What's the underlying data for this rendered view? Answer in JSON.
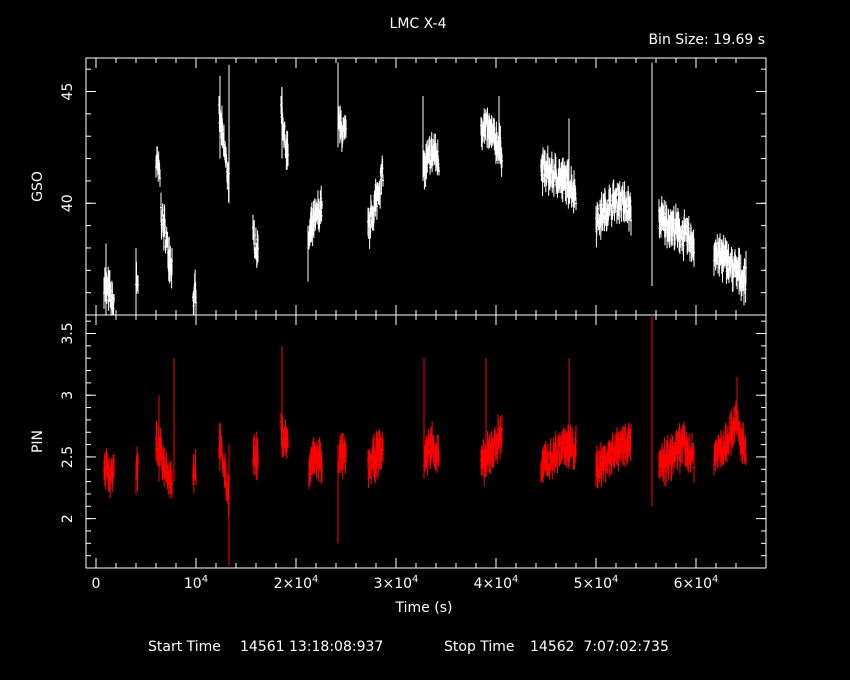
{
  "chart_data": {
    "type": "scatter",
    "title": "LMC X-4",
    "subtitle": "Bin Size: 19.69 s",
    "xlabel": "Time (s)",
    "xlim": [
      -1000,
      67000
    ],
    "x_ticks": [
      {
        "value": 0,
        "label": "0"
      },
      {
        "value": 10000,
        "base": "10",
        "exp": "4"
      },
      {
        "value": 20000,
        "base": "2×10",
        "exp": "4"
      },
      {
        "value": 30000,
        "base": "3×10",
        "exp": "4"
      },
      {
        "value": 40000,
        "base": "4×10",
        "exp": "4"
      },
      {
        "value": 50000,
        "base": "5×10",
        "exp": "4"
      },
      {
        "value": 60000,
        "base": "6×10",
        "exp": "4"
      }
    ],
    "footer": {
      "start_label": "Start Time",
      "start_value": "14561 13:18:08:937",
      "stop_label": "Stop Time",
      "stop_value": "14562  7:07:02:735"
    },
    "panels": [
      {
        "name": "gso",
        "ylabel": "GSO",
        "ylim": [
          35.0,
          46.5
        ],
        "yticks": [
          40,
          45
        ],
        "color": "#ffffff",
        "segments": [
          {
            "t0": 800,
            "t1": 1800,
            "level": [
              36.5,
              36.0,
              35.3
            ]
          },
          {
            "t0": 4000,
            "t1": 4200,
            "level": [
              36.5
            ]
          },
          {
            "t0": 6000,
            "t1": 6400,
            "level": [
              41.8,
              41.3
            ]
          },
          {
            "t0": 6500,
            "t1": 7600,
            "level": [
              39.5,
              38.8,
              37.8,
              37.2
            ]
          },
          {
            "t0": 9700,
            "t1": 10000,
            "level": [
              35.8
            ]
          },
          {
            "t0": 12300,
            "t1": 13300,
            "level": [
              44.0,
              43.0,
              42.0,
              41.0
            ]
          },
          {
            "t0": 15700,
            "t1": 16200,
            "level": [
              38.5,
              37.8
            ]
          },
          {
            "t0": 18500,
            "t1": 19200,
            "level": [
              44.5,
              43.0,
              42.0
            ]
          },
          {
            "t0": 21300,
            "t1": 22600,
            "level": [
              38.5,
              39.0,
              39.5,
              39.8
            ]
          },
          {
            "t0": 24300,
            "t1": 25000,
            "level": [
              43.5,
              43.0
            ]
          },
          {
            "t0": 27200,
            "t1": 28700,
            "level": [
              38.8,
              39.6,
              40.5,
              41.5
            ]
          },
          {
            "t0": 32800,
            "t1": 34300,
            "level": [
              41.5,
              42.0,
              42.3,
              41.8
            ]
          },
          {
            "t0": 38500,
            "t1": 40600,
            "level": [
              43.5,
              43.2,
              42.8,
              42.3
            ]
          },
          {
            "t0": 44500,
            "t1": 48000,
            "level": [
              41.5,
              41.3,
              41.0,
              40.5
            ]
          },
          {
            "t0": 50000,
            "t1": 53500,
            "level": [
              39.2,
              39.8,
              40.2,
              39.6
            ]
          },
          {
            "t0": 56300,
            "t1": 59800,
            "level": [
              39.3,
              39.0,
              38.6,
              38.2
            ]
          },
          {
            "t0": 61800,
            "t1": 65000,
            "level": [
              37.8,
              37.5,
              37.0,
              36.6
            ]
          }
        ],
        "spikes": [
          {
            "t": 1000,
            "lo": 35.0,
            "hi": 38.2
          },
          {
            "t": 4000,
            "lo": 35.0,
            "hi": 38.0
          },
          {
            "t": 12400,
            "lo": 42.0,
            "hi": 45.7
          },
          {
            "t": 13300,
            "lo": 40.0,
            "hi": 46.2
          },
          {
            "t": 18600,
            "lo": 42.0,
            "hi": 45.2
          },
          {
            "t": 21200,
            "lo": 36.5,
            "hi": 39.0
          },
          {
            "t": 24200,
            "lo": 42.5,
            "hi": 46.3
          },
          {
            "t": 32700,
            "lo": 41.0,
            "hi": 44.8
          },
          {
            "t": 40300,
            "lo": 42.0,
            "hi": 44.8
          },
          {
            "t": 47300,
            "lo": 40.0,
            "hi": 43.8
          },
          {
            "t": 55600,
            "lo": 36.3,
            "hi": 46.3
          }
        ]
      },
      {
        "name": "pin",
        "ylabel": "PIN",
        "ylim": [
          1.6,
          3.65
        ],
        "yticks": [
          2,
          2.5,
          3,
          3.5
        ],
        "yticklabels": [
          "2",
          "2.5",
          "3",
          "3.5"
        ],
        "color": "#ff0000",
        "segments": [
          {
            "t0": 800,
            "t1": 1800,
            "level": [
              2.45,
              2.35,
              2.4
            ]
          },
          {
            "t0": 4000,
            "t1": 4200,
            "level": [
              2.4
            ]
          },
          {
            "t0": 6000,
            "t1": 7600,
            "level": [
              2.6,
              2.5,
              2.4,
              2.3
            ]
          },
          {
            "t0": 9700,
            "t1": 10000,
            "level": [
              2.4
            ]
          },
          {
            "t0": 12300,
            "t1": 13300,
            "level": [
              2.6,
              2.5,
              2.3,
              2.2
            ]
          },
          {
            "t0": 15700,
            "t1": 16200,
            "level": [
              2.5
            ]
          },
          {
            "t0": 18500,
            "t1": 19200,
            "level": [
              2.7,
              2.6
            ]
          },
          {
            "t0": 21300,
            "t1": 22600,
            "level": [
              2.4,
              2.5,
              2.45
            ]
          },
          {
            "t0": 24300,
            "t1": 25000,
            "level": [
              2.5
            ]
          },
          {
            "t0": 27200,
            "t1": 28700,
            "level": [
              2.4,
              2.5,
              2.55
            ]
          },
          {
            "t0": 32800,
            "t1": 34300,
            "level": [
              2.5,
              2.6,
              2.5
            ]
          },
          {
            "t0": 38500,
            "t1": 40600,
            "level": [
              2.4,
              2.5,
              2.6,
              2.7
            ]
          },
          {
            "t0": 44500,
            "t1": 48000,
            "level": [
              2.4,
              2.5,
              2.6,
              2.55
            ]
          },
          {
            "t0": 50000,
            "t1": 53500,
            "level": [
              2.4,
              2.5,
              2.6,
              2.65
            ]
          },
          {
            "t0": 56300,
            "t1": 59800,
            "level": [
              2.4,
              2.5,
              2.6,
              2.5
            ]
          },
          {
            "t0": 61800,
            "t1": 65000,
            "level": [
              2.5,
              2.6,
              2.8,
              2.5
            ]
          }
        ],
        "spikes": [
          {
            "t": 6300,
            "lo": 2.3,
            "hi": 3.0
          },
          {
            "t": 7800,
            "lo": 2.3,
            "hi": 3.3
          },
          {
            "t": 13300,
            "lo": 1.62,
            "hi": 2.6
          },
          {
            "t": 18600,
            "lo": 2.5,
            "hi": 3.4
          },
          {
            "t": 24200,
            "lo": 1.8,
            "hi": 2.6
          },
          {
            "t": 32800,
            "lo": 2.5,
            "hi": 3.3
          },
          {
            "t": 39000,
            "lo": 2.4,
            "hi": 3.3
          },
          {
            "t": 47300,
            "lo": 2.4,
            "hi": 3.3
          },
          {
            "t": 55600,
            "lo": 2.1,
            "hi": 3.65
          },
          {
            "t": 64100,
            "lo": 2.8,
            "hi": 3.15
          }
        ]
      }
    ]
  }
}
